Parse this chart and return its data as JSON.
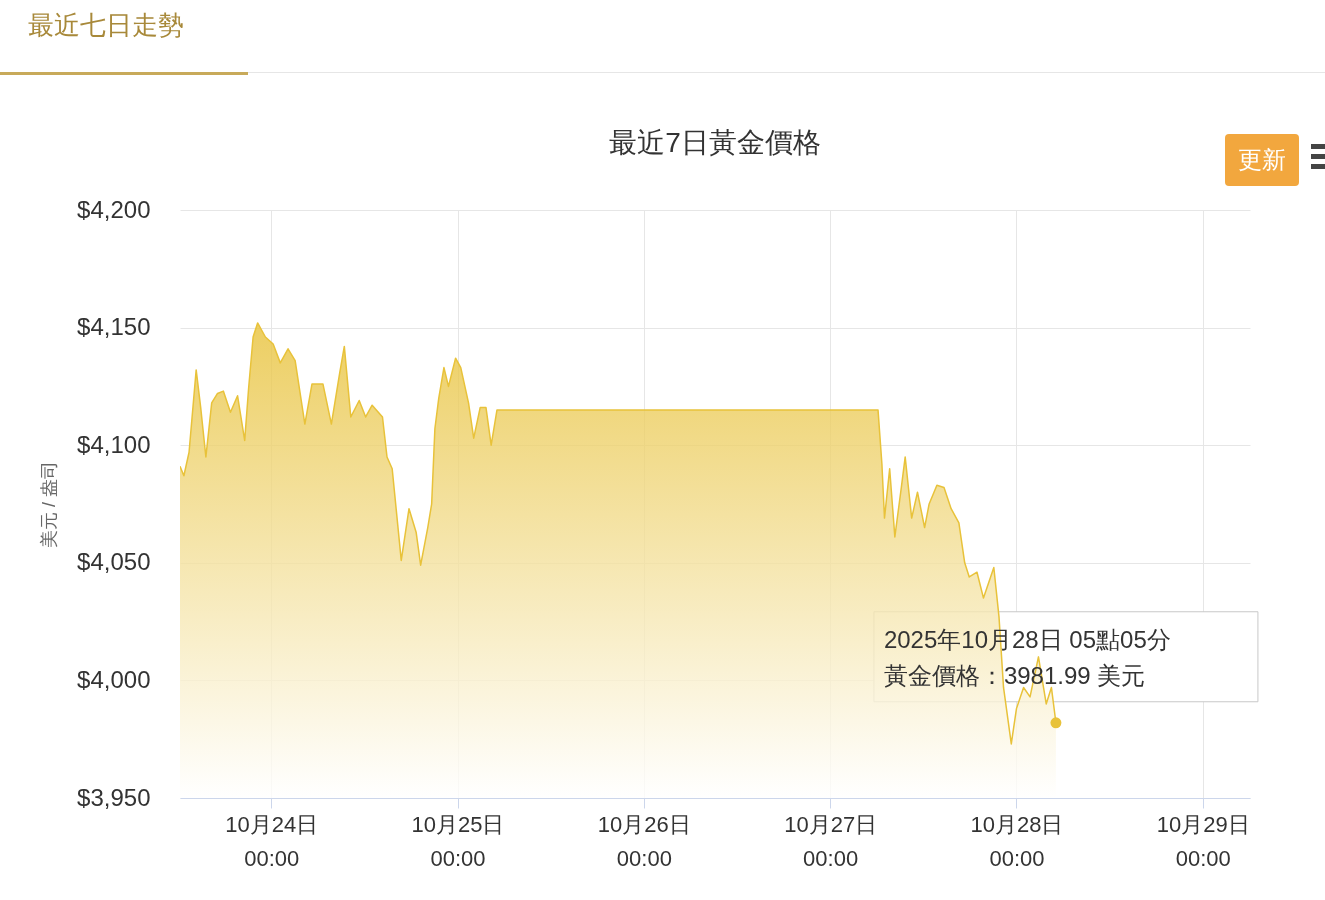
{
  "chart_data": {
    "type": "area",
    "title": "最近7日黃金價格",
    "ylabel": "美元 / 盎司",
    "xlim": [
      "2025-10-23T12:15",
      "2025-10-29T06:05"
    ],
    "xticks": [
      {
        "value": "2025-10-24",
        "label": "10月24日\n00:00"
      },
      {
        "value": "2025-10-25",
        "label": "10月25日\n00:00"
      },
      {
        "value": "2025-10-26",
        "label": "10月26日\n00:00"
      },
      {
        "value": "2025-10-27",
        "label": "10月27日\n00:00"
      },
      {
        "value": "2025-10-28",
        "label": "10月28日\n00:00"
      },
      {
        "value": "2025-10-29",
        "label": "10月29日\n00:00"
      }
    ],
    "ylim": [
      3950,
      4200
    ],
    "yticks": [
      {
        "value": 3950,
        "label": "$3,950"
      },
      {
        "value": 4000,
        "label": "$4,000"
      },
      {
        "value": 4050,
        "label": "$4,050"
      },
      {
        "value": 4100,
        "label": "$4,100"
      },
      {
        "value": 4150,
        "label": "$4,150"
      },
      {
        "value": 4200,
        "label": "$4,200"
      }
    ],
    "grid": true,
    "annotations": [
      "最近七日走勢",
      "更新",
      {
        "text": "2025年10月28日 05點05分",
        "x": "2025-10-28T05:05",
        "y": 3981.99
      },
      {
        "text": "黃金價格：3981.99 美元",
        "x": "2025-10-28T05:05",
        "y": 3981.99
      }
    ],
    "series": [
      {
        "color": "#e8c23a",
        "x": [
          "2025-10-23T12:15",
          "2025-10-23T12:45",
          "2025-10-23T13:25",
          "2025-10-23T14:20",
          "2025-10-23T14:55",
          "2025-10-23T15:35",
          "2025-10-23T16:20",
          "2025-10-23T17:05",
          "2025-10-23T17:50",
          "2025-10-23T18:45",
          "2025-10-23T19:40",
          "2025-10-23T20:35",
          "2025-10-23T21:05",
          "2025-10-23T21:40",
          "2025-10-23T22:15",
          "2025-10-23T23:15",
          "2025-10-24T00:15",
          "2025-10-24T01:10",
          "2025-10-24T02:10",
          "2025-10-24T03:05",
          "2025-10-24T04:20",
          "2025-10-24T05:15",
          "2025-10-24T06:40",
          "2025-10-24T07:45",
          "2025-10-24T08:50",
          "2025-10-24T09:25",
          "2025-10-24T10:15",
          "2025-10-24T11:20",
          "2025-10-24T12:10",
          "2025-10-24T13:00",
          "2025-10-24T14:20",
          "2025-10-24T14:55",
          "2025-10-24T15:35",
          "2025-10-24T16:45",
          "2025-10-24T17:45",
          "2025-10-24T18:40",
          "2025-10-24T19:15",
          "2025-10-24T20:10",
          "2025-10-24T20:40",
          "2025-10-24T21:05",
          "2025-10-24T21:35",
          "2025-10-24T22:15",
          "2025-10-24T22:50",
          "2025-10-24T23:45",
          "2025-10-25T00:25",
          "2025-10-25T01:25",
          "2025-10-25T02:05",
          "2025-10-25T02:55",
          "2025-10-25T03:40",
          "2025-10-25T04:20",
          "2025-10-25T05:05",
          "2025-10-27T06:10",
          "2025-10-27T06:40",
          "2025-10-27T07:00",
          "2025-10-27T07:40",
          "2025-10-27T08:20",
          "2025-10-27T09:10",
          "2025-10-27T09:40",
          "2025-10-27T10:30",
          "2025-10-27T11:15",
          "2025-10-27T12:10",
          "2025-10-27T12:45",
          "2025-10-27T13:45",
          "2025-10-27T14:40",
          "2025-10-27T15:35",
          "2025-10-27T16:35",
          "2025-10-27T17:20",
          "2025-10-27T17:55",
          "2025-10-27T18:55",
          "2025-10-27T19:45",
          "2025-10-27T21:05",
          "2025-10-27T21:45",
          "2025-10-27T22:20",
          "2025-10-27T23:20",
          "2025-10-28T00:00",
          "2025-10-28T00:55",
          "2025-10-28T01:45",
          "2025-10-28T02:50",
          "2025-10-28T03:50",
          "2025-10-28T04:30",
          "2025-10-28T05:05"
        ],
        "values": [
          4091,
          4087,
          4097,
          4132,
          4116,
          4095,
          4118,
          4122,
          4123,
          4114,
          4121,
          4102,
          4124,
          4146,
          4152,
          4146,
          4143,
          4135,
          4141,
          4136,
          4109,
          4126,
          4126,
          4109,
          4131,
          4142,
          4112,
          4119,
          4112,
          4117,
          4112,
          4095,
          4090,
          4051,
          4073,
          4063,
          4049,
          4065,
          4075,
          4107,
          4120,
          4133,
          4125,
          4137,
          4133,
          4118,
          4103,
          4116,
          4116,
          4100,
          4115,
          4115,
          4092,
          4069,
          4090,
          4061,
          4082,
          4095,
          4069,
          4080,
          4065,
          4075,
          4083,
          4082,
          4073,
          4067,
          4050,
          4044,
          4046,
          4035,
          4048,
          4027,
          3997,
          3973,
          3988,
          3997,
          3993,
          4010,
          3990,
          3997,
          3981.99
        ]
      }
    ]
  }
}
